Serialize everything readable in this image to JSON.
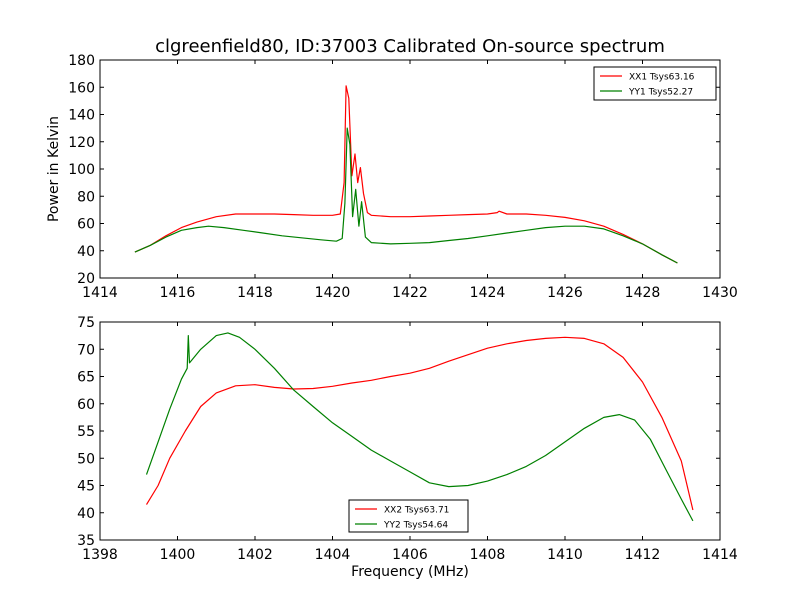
{
  "title": "clgreenfield80, ID:37003 Calibrated On-source spectrum",
  "colors": {
    "xx": "#ff0000",
    "yy": "#008000"
  },
  "chart_data": [
    {
      "type": "line",
      "title": "clgreenfield80, ID:37003 Calibrated On-source spectrum",
      "xlabel": "",
      "ylabel": "Power in Kelvin",
      "xlim": [
        1414,
        1430
      ],
      "ylim": [
        20,
        180
      ],
      "xticks": [
        "1414",
        "1416",
        "1418",
        "1420",
        "1422",
        "1424",
        "1426",
        "1428",
        "1430"
      ],
      "yticks": [
        "20",
        "40",
        "60",
        "80",
        "100",
        "120",
        "140",
        "160",
        "180"
      ],
      "grid": false,
      "legend_position": "top-right",
      "series": [
        {
          "name": "XX1 Tsys63.16",
          "color": "#ff0000",
          "points": [
            [
              1414.9,
              39
            ],
            [
              1415.3,
              44
            ],
            [
              1415.7,
              51
            ],
            [
              1416.1,
              57
            ],
            [
              1416.5,
              61
            ],
            [
              1417.0,
              65
            ],
            [
              1417.5,
              67
            ],
            [
              1418.0,
              67
            ],
            [
              1418.5,
              67
            ],
            [
              1419.0,
              66.5
            ],
            [
              1419.5,
              66
            ],
            [
              1420.0,
              66
            ],
            [
              1420.2,
              67
            ],
            [
              1420.3,
              90
            ],
            [
              1420.35,
              161
            ],
            [
              1420.42,
              152
            ],
            [
              1420.5,
              95
            ],
            [
              1420.58,
              111
            ],
            [
              1420.65,
              90
            ],
            [
              1420.72,
              101
            ],
            [
              1420.8,
              82
            ],
            [
              1420.9,
              68
            ],
            [
              1421.0,
              66
            ],
            [
              1421.5,
              65
            ],
            [
              1422.0,
              65
            ],
            [
              1422.5,
              65.5
            ],
            [
              1423.0,
              66
            ],
            [
              1423.5,
              66.5
            ],
            [
              1424.0,
              67
            ],
            [
              1424.25,
              68
            ],
            [
              1424.3,
              69
            ],
            [
              1424.5,
              67
            ],
            [
              1425.0,
              67
            ],
            [
              1425.5,
              66
            ],
            [
              1426.0,
              64.5
            ],
            [
              1426.5,
              62
            ],
            [
              1427.0,
              58
            ],
            [
              1427.5,
              52
            ],
            [
              1428.0,
              45
            ],
            [
              1428.5,
              37
            ],
            [
              1428.9,
              31
            ]
          ]
        },
        {
          "name": "YY1 Tsys52.27",
          "color": "#008000",
          "points": [
            [
              1414.9,
              39
            ],
            [
              1415.3,
              44
            ],
            [
              1415.7,
              50
            ],
            [
              1416.1,
              55
            ],
            [
              1416.5,
              57
            ],
            [
              1416.8,
              58
            ],
            [
              1417.2,
              57
            ],
            [
              1417.7,
              55
            ],
            [
              1418.2,
              53
            ],
            [
              1418.7,
              51
            ],
            [
              1419.2,
              49.5
            ],
            [
              1419.7,
              48
            ],
            [
              1420.1,
              47
            ],
            [
              1420.25,
              49
            ],
            [
              1420.32,
              75
            ],
            [
              1420.38,
              130
            ],
            [
              1420.45,
              118
            ],
            [
              1420.52,
              65
            ],
            [
              1420.6,
              85
            ],
            [
              1420.68,
              58
            ],
            [
              1420.75,
              76
            ],
            [
              1420.85,
              50
            ],
            [
              1421.0,
              46
            ],
            [
              1421.5,
              45
            ],
            [
              1422.0,
              45.5
            ],
            [
              1422.5,
              46
            ],
            [
              1423.0,
              47.5
            ],
            [
              1423.5,
              49
            ],
            [
              1424.0,
              51
            ],
            [
              1424.5,
              53
            ],
            [
              1425.0,
              55
            ],
            [
              1425.5,
              57
            ],
            [
              1426.0,
              58
            ],
            [
              1426.5,
              58
            ],
            [
              1427.0,
              56
            ],
            [
              1427.5,
              51
            ],
            [
              1428.0,
              45
            ],
            [
              1428.5,
              37
            ],
            [
              1428.9,
              31
            ]
          ]
        }
      ]
    },
    {
      "type": "line",
      "title": "",
      "xlabel": "Frequency (MHz)",
      "ylabel": "",
      "xlim": [
        1398,
        1414
      ],
      "ylim": [
        35,
        75
      ],
      "xticks": [
        "1398",
        "1400",
        "1402",
        "1404",
        "1406",
        "1408",
        "1410",
        "1412",
        "1414"
      ],
      "yticks": [
        "35",
        "40",
        "45",
        "50",
        "55",
        "60",
        "65",
        "70",
        "75"
      ],
      "grid": false,
      "legend_position": "bottom-center",
      "series": [
        {
          "name": "XX2 Tsys63.71",
          "color": "#ff0000",
          "points": [
            [
              1399.2,
              41.5
            ],
            [
              1399.5,
              45
            ],
            [
              1399.8,
              50
            ],
            [
              1400.2,
              55
            ],
            [
              1400.6,
              59.5
            ],
            [
              1401.0,
              62
            ],
            [
              1401.5,
              63.3
            ],
            [
              1402.0,
              63.5
            ],
            [
              1402.5,
              63
            ],
            [
              1403.0,
              62.7
            ],
            [
              1403.5,
              62.8
            ],
            [
              1404.0,
              63.2
            ],
            [
              1404.5,
              63.8
            ],
            [
              1405.0,
              64.3
            ],
            [
              1405.5,
              65
            ],
            [
              1406.0,
              65.6
            ],
            [
              1406.5,
              66.5
            ],
            [
              1407.0,
              67.8
            ],
            [
              1407.5,
              69
            ],
            [
              1408.0,
              70.2
            ],
            [
              1408.5,
              71
            ],
            [
              1409.0,
              71.6
            ],
            [
              1409.5,
              72
            ],
            [
              1410.0,
              72.2
            ],
            [
              1410.5,
              72
            ],
            [
              1411.0,
              71
            ],
            [
              1411.5,
              68.5
            ],
            [
              1412.0,
              64
            ],
            [
              1412.5,
              57.5
            ],
            [
              1413.0,
              49.5
            ],
            [
              1413.3,
              40.5
            ]
          ]
        },
        {
          "name": "YY2 Tsys54.64",
          "color": "#008000",
          "points": [
            [
              1399.2,
              47
            ],
            [
              1399.5,
              53
            ],
            [
              1399.8,
              59
            ],
            [
              1400.1,
              64.5
            ],
            [
              1400.25,
              66.5
            ],
            [
              1400.28,
              72.5
            ],
            [
              1400.31,
              67.5
            ],
            [
              1400.6,
              70
            ],
            [
              1401.0,
              72.5
            ],
            [
              1401.3,
              73
            ],
            [
              1401.6,
              72.2
            ],
            [
              1402.0,
              70
            ],
            [
              1402.5,
              66.5
            ],
            [
              1403.0,
              62.5
            ],
            [
              1403.5,
              59.5
            ],
            [
              1404.0,
              56.5
            ],
            [
              1404.5,
              54
            ],
            [
              1405.0,
              51.5
            ],
            [
              1405.5,
              49.5
            ],
            [
              1406.0,
              47.5
            ],
            [
              1406.5,
              45.5
            ],
            [
              1407.0,
              44.8
            ],
            [
              1407.5,
              45
            ],
            [
              1408.0,
              45.8
            ],
            [
              1408.5,
              47
            ],
            [
              1409.0,
              48.5
            ],
            [
              1409.5,
              50.5
            ],
            [
              1410.0,
              53
            ],
            [
              1410.5,
              55.5
            ],
            [
              1411.0,
              57.5
            ],
            [
              1411.4,
              58
            ],
            [
              1411.8,
              57
            ],
            [
              1412.2,
              53.5
            ],
            [
              1412.6,
              48
            ],
            [
              1413.0,
              42.5
            ],
            [
              1413.3,
              38.5
            ]
          ]
        }
      ]
    }
  ]
}
